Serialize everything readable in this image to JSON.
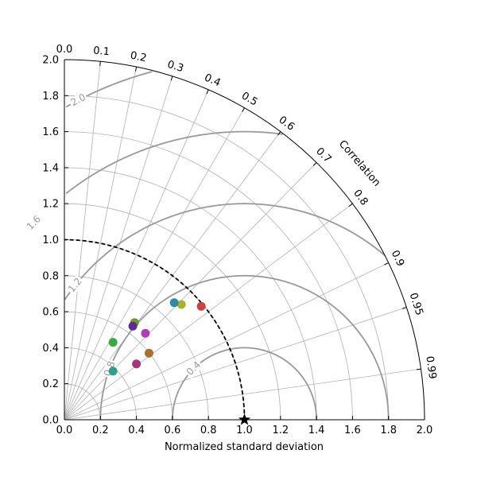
{
  "chart_data": {
    "type": "scatter",
    "subtype": "taylor-diagram",
    "xlabel": "Normalized standard deviation",
    "corr_label": "Correlation",
    "xlim": [
      0,
      2.0
    ],
    "ylim": [
      0,
      2.0
    ],
    "std_ticks": [
      "0.0",
      "0.2",
      "0.4",
      "0.6",
      "0.8",
      "1.0",
      "1.2",
      "1.4",
      "1.6",
      "1.8",
      "2.0"
    ],
    "std_tick_values": [
      0,
      0.2,
      0.4,
      0.6,
      0.8,
      1.0,
      1.2,
      1.4,
      1.6,
      1.8,
      2.0
    ],
    "corr_ticks": [
      "0.0",
      "0.1",
      "0.2",
      "0.3",
      "0.4",
      "0.5",
      "0.6",
      "0.7",
      "0.8",
      "0.9",
      "0.95",
      "0.99"
    ],
    "corr_tick_values": [
      0.0,
      0.1,
      0.2,
      0.3,
      0.4,
      0.5,
      0.6,
      0.7,
      0.8,
      0.9,
      0.95,
      0.99
    ],
    "rms_contours": [
      {
        "value": 0.4,
        "label": "0.4",
        "labeled": true
      },
      {
        "value": 0.8,
        "label": "0.8",
        "labeled": true
      },
      {
        "value": 1.2,
        "label": "1.2",
        "labeled": true
      },
      {
        "value": 1.6,
        "label": "1.6",
        "labeled": true
      },
      {
        "value": 2.0,
        "label": "2.0",
        "labeled": true
      }
    ],
    "reference": {
      "std": 1.0,
      "corr": 1.0,
      "marker": "star",
      "color": "#000000"
    },
    "reference_arc_std": 1.0,
    "grid": true,
    "points": [
      {
        "x": 0.76,
        "y": 0.63,
        "color": "#c94343"
      },
      {
        "x": 0.65,
        "y": 0.64,
        "color": "#aab233"
      },
      {
        "x": 0.61,
        "y": 0.65,
        "color": "#2f89a8"
      },
      {
        "x": 0.39,
        "y": 0.54,
        "color": "#6f9b2e"
      },
      {
        "x": 0.38,
        "y": 0.52,
        "color": "#5a2d8f"
      },
      {
        "x": 0.45,
        "y": 0.48,
        "color": "#b03cb8"
      },
      {
        "x": 0.27,
        "y": 0.43,
        "color": "#3aa845"
      },
      {
        "x": 0.47,
        "y": 0.37,
        "color": "#a86f35"
      },
      {
        "x": 0.4,
        "y": 0.31,
        "color": "#a3377a"
      },
      {
        "x": 0.27,
        "y": 0.27,
        "color": "#2f9e8e"
      }
    ],
    "colors": {
      "axis": "#000000",
      "grid": "#b0b0b0",
      "rms": "#999999",
      "reference_arc": "#000000"
    }
  }
}
